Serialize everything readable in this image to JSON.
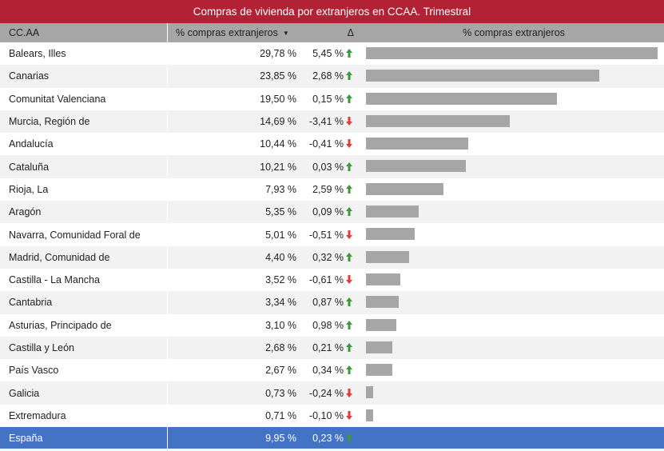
{
  "title": "Compras de vivienda por extranjeros en CCAA. Trimestral",
  "header": {
    "col_region": "CC.AA",
    "col_pct": "% compras extranjeros",
    "col_delta": "Δ",
    "col_bar": "% compras extranjeros"
  },
  "colors": {
    "up": "#3a9a3a",
    "down": "#e03c3c",
    "title_bg": "#b22234",
    "total_bg": "#4472c4",
    "bar": "#a6a6a6"
  },
  "chart_data": {
    "type": "table",
    "title": "Compras de vivienda por extranjeros en CCAA. Trimestral",
    "columns": [
      "CC.AA",
      "% compras extranjeros",
      "Δ",
      "% compras extranjeros"
    ],
    "rows": [
      {
        "region": "Balears, Illes",
        "pct_label": "29,78 %",
        "pct": 29.78,
        "delta_label": "5,45 %",
        "trend": "up"
      },
      {
        "region": "Canarias",
        "pct_label": "23,85 %",
        "pct": 23.85,
        "delta_label": "2,68 %",
        "trend": "up"
      },
      {
        "region": "Comunitat Valenciana",
        "pct_label": "19,50 %",
        "pct": 19.5,
        "delta_label": "0,15 %",
        "trend": "up"
      },
      {
        "region": "Murcia, Región de",
        "pct_label": "14,69 %",
        "pct": 14.69,
        "delta_label": "-3,41 %",
        "trend": "down"
      },
      {
        "region": "Andalucía",
        "pct_label": "10,44 %",
        "pct": 10.44,
        "delta_label": "-0,41 %",
        "trend": "down"
      },
      {
        "region": "Cataluña",
        "pct_label": "10,21 %",
        "pct": 10.21,
        "delta_label": "0,03 %",
        "trend": "up"
      },
      {
        "region": "Rioja, La",
        "pct_label": "7,93 %",
        "pct": 7.93,
        "delta_label": "2,59 %",
        "trend": "up"
      },
      {
        "region": "Aragón",
        "pct_label": "5,35 %",
        "pct": 5.35,
        "delta_label": "0,09 %",
        "trend": "up"
      },
      {
        "region": "Navarra, Comunidad Foral de",
        "pct_label": "5,01 %",
        "pct": 5.01,
        "delta_label": "-0,51 %",
        "trend": "down"
      },
      {
        "region": "Madrid, Comunidad de",
        "pct_label": "4,40 %",
        "pct": 4.4,
        "delta_label": "0,32 %",
        "trend": "up"
      },
      {
        "region": "Castilla - La Mancha",
        "pct_label": "3,52 %",
        "pct": 3.52,
        "delta_label": "-0,61 %",
        "trend": "down"
      },
      {
        "region": "Cantabria",
        "pct_label": "3,34 %",
        "pct": 3.34,
        "delta_label": "0,87 %",
        "trend": "up"
      },
      {
        "region": "Asturias, Principado de",
        "pct_label": "3,10 %",
        "pct": 3.1,
        "delta_label": "0,98 %",
        "trend": "up"
      },
      {
        "region": "Castilla y León",
        "pct_label": "2,68 %",
        "pct": 2.68,
        "delta_label": "0,21 %",
        "trend": "up"
      },
      {
        "region": "País Vasco",
        "pct_label": "2,67 %",
        "pct": 2.67,
        "delta_label": "0,34 %",
        "trend": "up"
      },
      {
        "region": "Galicia",
        "pct_label": "0,73 %",
        "pct": 0.73,
        "delta_label": "-0,24 %",
        "trend": "down"
      },
      {
        "region": "Extremadura",
        "pct_label": "0,71 %",
        "pct": 0.71,
        "delta_label": "-0,10 %",
        "trend": "down"
      }
    ],
    "total": {
      "region": "España",
      "pct_label": "9,95 %",
      "pct": 9.95,
      "delta_label": "0,23 %",
      "trend": "up"
    },
    "bar_max": 29.78
  }
}
